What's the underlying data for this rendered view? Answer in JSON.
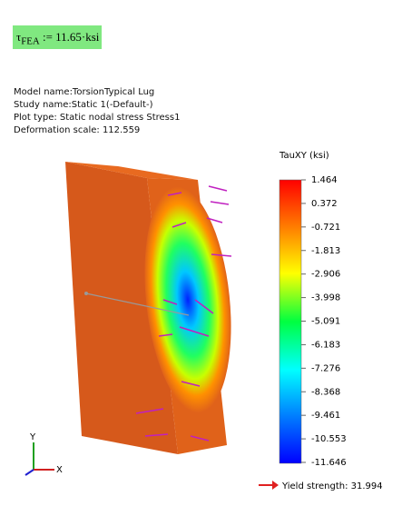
{
  "formula": {
    "symbol": "τ",
    "subscript": "FEA",
    "rest": ":= 11.65·ksi"
  },
  "info": [
    "Model name:TorsionTypical Lug",
    "Study name:Static 1(-Default-)",
    "Plot type: Static nodal stress Stress1",
    "Deformation scale: 112.559"
  ],
  "legend": {
    "title": "TauXY (ksi)",
    "labels": [
      "1.464",
      "0.372",
      "-0.721",
      "-1.813",
      "-2.906",
      "-3.998",
      "-5.091",
      "-6.183",
      "-7.276",
      "-8.368",
      "-9.461",
      "-10.553",
      "-11.646"
    ]
  },
  "yield": "Yield strength: 31.994",
  "triad": {
    "y": "Y",
    "x": "X"
  }
}
